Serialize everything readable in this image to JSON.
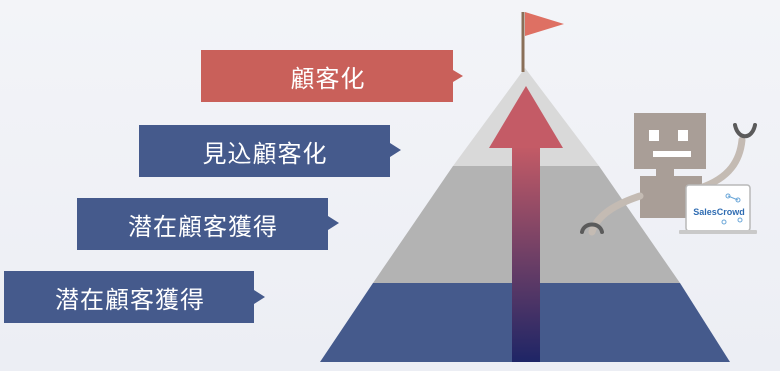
{
  "pyramid": {
    "tiers": [
      {
        "label": "顧客化",
        "color": "#c9605a"
      },
      {
        "label": "見込顧客化",
        "color": "#455a8c"
      },
      {
        "label": "潜在顧客獲得",
        "color": "#455a8c"
      },
      {
        "label": "潜在顧客獲得",
        "color": "#455a8c"
      }
    ],
    "flag_color": "#de7063",
    "arrow_top_color": "#c45b66",
    "arrow_bottom_color": "#1e2566"
  },
  "mascot": {
    "laptop_logo": "SalesCrowd"
  }
}
